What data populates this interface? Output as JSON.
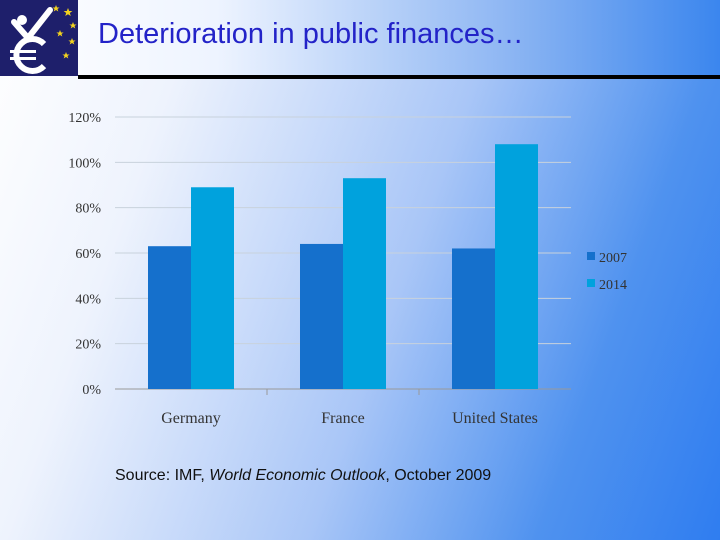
{
  "slide": {
    "title": "Deterioration in public finances…",
    "source": {
      "prefix": "Source: IMF, ",
      "publication": "World Economic Outlook",
      "suffix": ", October 2009"
    }
  },
  "colors": {
    "series_2007": "#1570cc",
    "series_2014": "#00a2dd",
    "title": "#2323c8",
    "logo_bg": "#1e1f6b",
    "logo_stars": "#f2d21e"
  },
  "chart_data": {
    "type": "bar",
    "categories": [
      "Germany",
      "France",
      "United States"
    ],
    "series": [
      {
        "name": "2007",
        "values": [
          63,
          64,
          62
        ]
      },
      {
        "name": "2014",
        "values": [
          89,
          93,
          108
        ]
      }
    ],
    "yticks": [
      "0%",
      "20%",
      "40%",
      "60%",
      "80%",
      "100%",
      "120%"
    ],
    "ylim": [
      0,
      120
    ],
    "grid": true,
    "legend": "right",
    "title": "",
    "xlabel": "",
    "ylabel": ""
  }
}
